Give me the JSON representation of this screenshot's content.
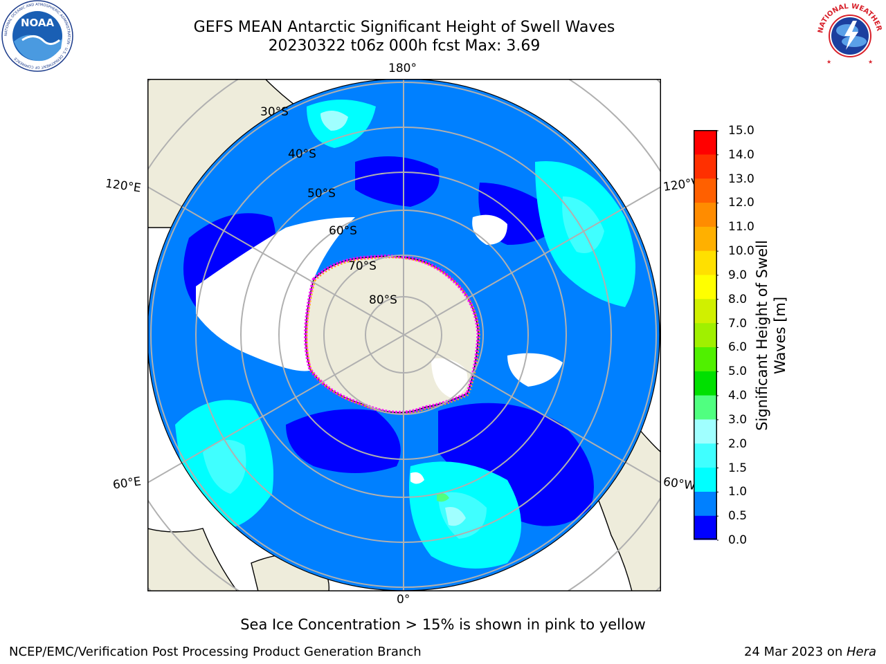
{
  "header": {
    "title_line1": "GEFS MEAN Antarctic Significant Height of Swell Waves",
    "title_line2": "20230322 t06z 000h fcst   Max: 3.69",
    "left_logo_text": "NOAA",
    "left_logo_ring_text": "NATIONAL OCEANIC AND ATMOSPHERIC ADMINISTRATION · U.S. DEPARTMENT OF COMMERCE",
    "right_logo_ring_text": "NATIONAL WEATHER SERVICE"
  },
  "map": {
    "longitude_labels": {
      "top": "180°",
      "bottom": "0°",
      "upper_left": "120°E",
      "lower_left": "60°E",
      "upper_right": "120°W",
      "lower_right": "60°W"
    },
    "latitude_labels": [
      "30°S",
      "40°S",
      "50°S",
      "60°S",
      "70°S",
      "80°S"
    ],
    "colors": {
      "land": "#eeecdb",
      "ice_free_white": "#ffffff",
      "swell_0_0.5": "#0000ff",
      "swell_0.5_1": "#0080ff",
      "swell_1_1.5": "#00ffff",
      "swell_1.5_2": "#40ffff",
      "swell_2_3": "#a0ffff",
      "sea_ice_edge": [
        "#ff00ff",
        "#ffb000",
        "#ffff00"
      ]
    }
  },
  "colorbar": {
    "label_line1": "Significant Height of Swell",
    "label_line2": "Waves [m]",
    "ticks": [
      "15.0",
      "14.0",
      "13.0",
      "12.0",
      "11.0",
      "10.0",
      "9.0",
      "8.0",
      "7.0",
      "6.0",
      "5.0",
      "4.0",
      "3.0",
      "2.0",
      "1.5",
      "1.0",
      "0.5",
      "0.0"
    ],
    "colors": [
      "#0000ff",
      "#0080ff",
      "#00ffff",
      "#40ffff",
      "#a0ffff",
      "#50ff80",
      "#00e000",
      "#50f000",
      "#a0f000",
      "#d0f000",
      "#ffff00",
      "#ffe000",
      "#ffb000",
      "#ff8c00",
      "#ff6000",
      "#ff3000",
      "#ff0000"
    ]
  },
  "footer": {
    "note": "Sea Ice Concentration > 15% is shown in pink to yellow",
    "credit": "NCEP/EMC/Verification Post Processing Product Generation Branch",
    "date": "24 Mar 2023 on ",
    "host": "Hera"
  }
}
